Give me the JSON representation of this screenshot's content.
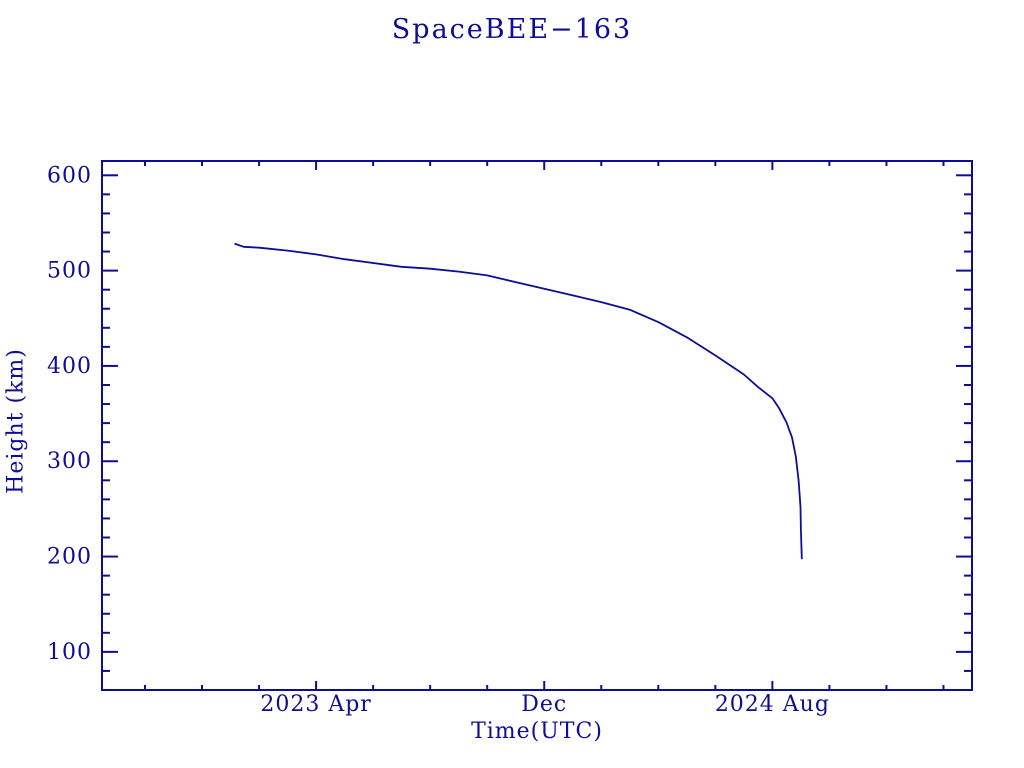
{
  "page": {
    "background": "#ffffff"
  },
  "colors": {
    "accent": "#0d0d96"
  },
  "chart_data": {
    "type": "line",
    "title": "SpaceBEE−163",
    "xlabel": "Time(UTC)",
    "ylabel": "Height (km)",
    "grid": false,
    "legend": null,
    "x_axis": {
      "lim": [
        "2022-08-16",
        "2025-03-01"
      ],
      "major_ticks": [
        {
          "date": "2023-04-01",
          "label": "2023 Apr"
        },
        {
          "date": "2023-12-01",
          "label": "Dec"
        },
        {
          "date": "2024-08-01",
          "label": "2024 Aug"
        }
      ],
      "minor_tick_step_months": 2
    },
    "y_axis": {
      "lim": [
        60,
        615
      ],
      "major_ticks": [
        100,
        200,
        300,
        400,
        500,
        600
      ],
      "minor_tick_step": 20
    },
    "series": [
      {
        "name": "SpaceBEE-163 orbital height",
        "color": "#0d0d96",
        "points": [
          [
            "2023-01-06",
            528
          ],
          [
            "2023-01-15",
            525
          ],
          [
            "2023-02-01",
            524
          ],
          [
            "2023-03-01",
            521
          ],
          [
            "2023-04-01",
            517
          ],
          [
            "2023-05-01",
            512
          ],
          [
            "2023-06-01",
            508
          ],
          [
            "2023-07-01",
            504
          ],
          [
            "2023-08-01",
            502
          ],
          [
            "2023-09-01",
            499
          ],
          [
            "2023-10-01",
            495
          ],
          [
            "2023-11-01",
            488
          ],
          [
            "2023-12-01",
            481
          ],
          [
            "2024-01-01",
            474
          ],
          [
            "2024-02-01",
            467
          ],
          [
            "2024-03-01",
            459
          ],
          [
            "2024-04-01",
            446
          ],
          [
            "2024-05-01",
            430
          ],
          [
            "2024-06-01",
            411
          ],
          [
            "2024-07-01",
            391
          ],
          [
            "2024-07-16",
            378
          ],
          [
            "2024-08-01",
            366
          ],
          [
            "2024-08-08",
            356
          ],
          [
            "2024-08-16",
            341
          ],
          [
            "2024-08-22",
            325
          ],
          [
            "2024-08-26",
            305
          ],
          [
            "2024-08-29",
            280
          ],
          [
            "2024-08-31",
            252
          ],
          [
            "2024-09-01",
            228
          ],
          [
            "2024-09-02",
            198
          ]
        ]
      }
    ]
  }
}
